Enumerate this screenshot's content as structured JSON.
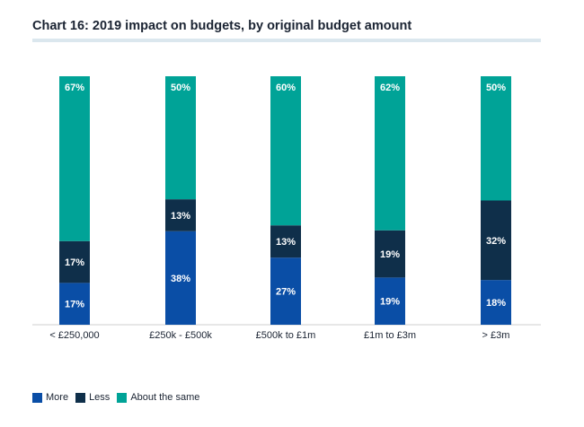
{
  "header": {
    "title": "Chart 16: 2019 impact on budgets, by original budget amount"
  },
  "colors": {
    "More": "#0a4ea6",
    "Less": "#0f2f4a",
    "About the same": "#00a397"
  },
  "chart_data": {
    "type": "bar",
    "stacked": true,
    "percent_stacked": true,
    "categories": [
      "< £250,000",
      "£250k - £500k",
      "£500k to £1m",
      "£1m to £3m",
      "> £3m"
    ],
    "series": [
      {
        "name": "More",
        "values": [
          17,
          38,
          27,
          19,
          18
        ],
        "labels": [
          "17%",
          "38%",
          "27%",
          "19%",
          "18%"
        ]
      },
      {
        "name": "Less",
        "values": [
          17,
          13,
          13,
          19,
          32
        ],
        "labels": [
          "17%",
          "13%",
          "13%",
          "19%",
          "32%"
        ]
      },
      {
        "name": "About the same",
        "values": [
          67,
          50,
          60,
          62,
          50
        ],
        "labels": [
          "67%",
          "50%",
          "60%",
          "62%",
          "50%"
        ]
      }
    ],
    "legend_position": "bottom-left",
    "grid": false
  }
}
